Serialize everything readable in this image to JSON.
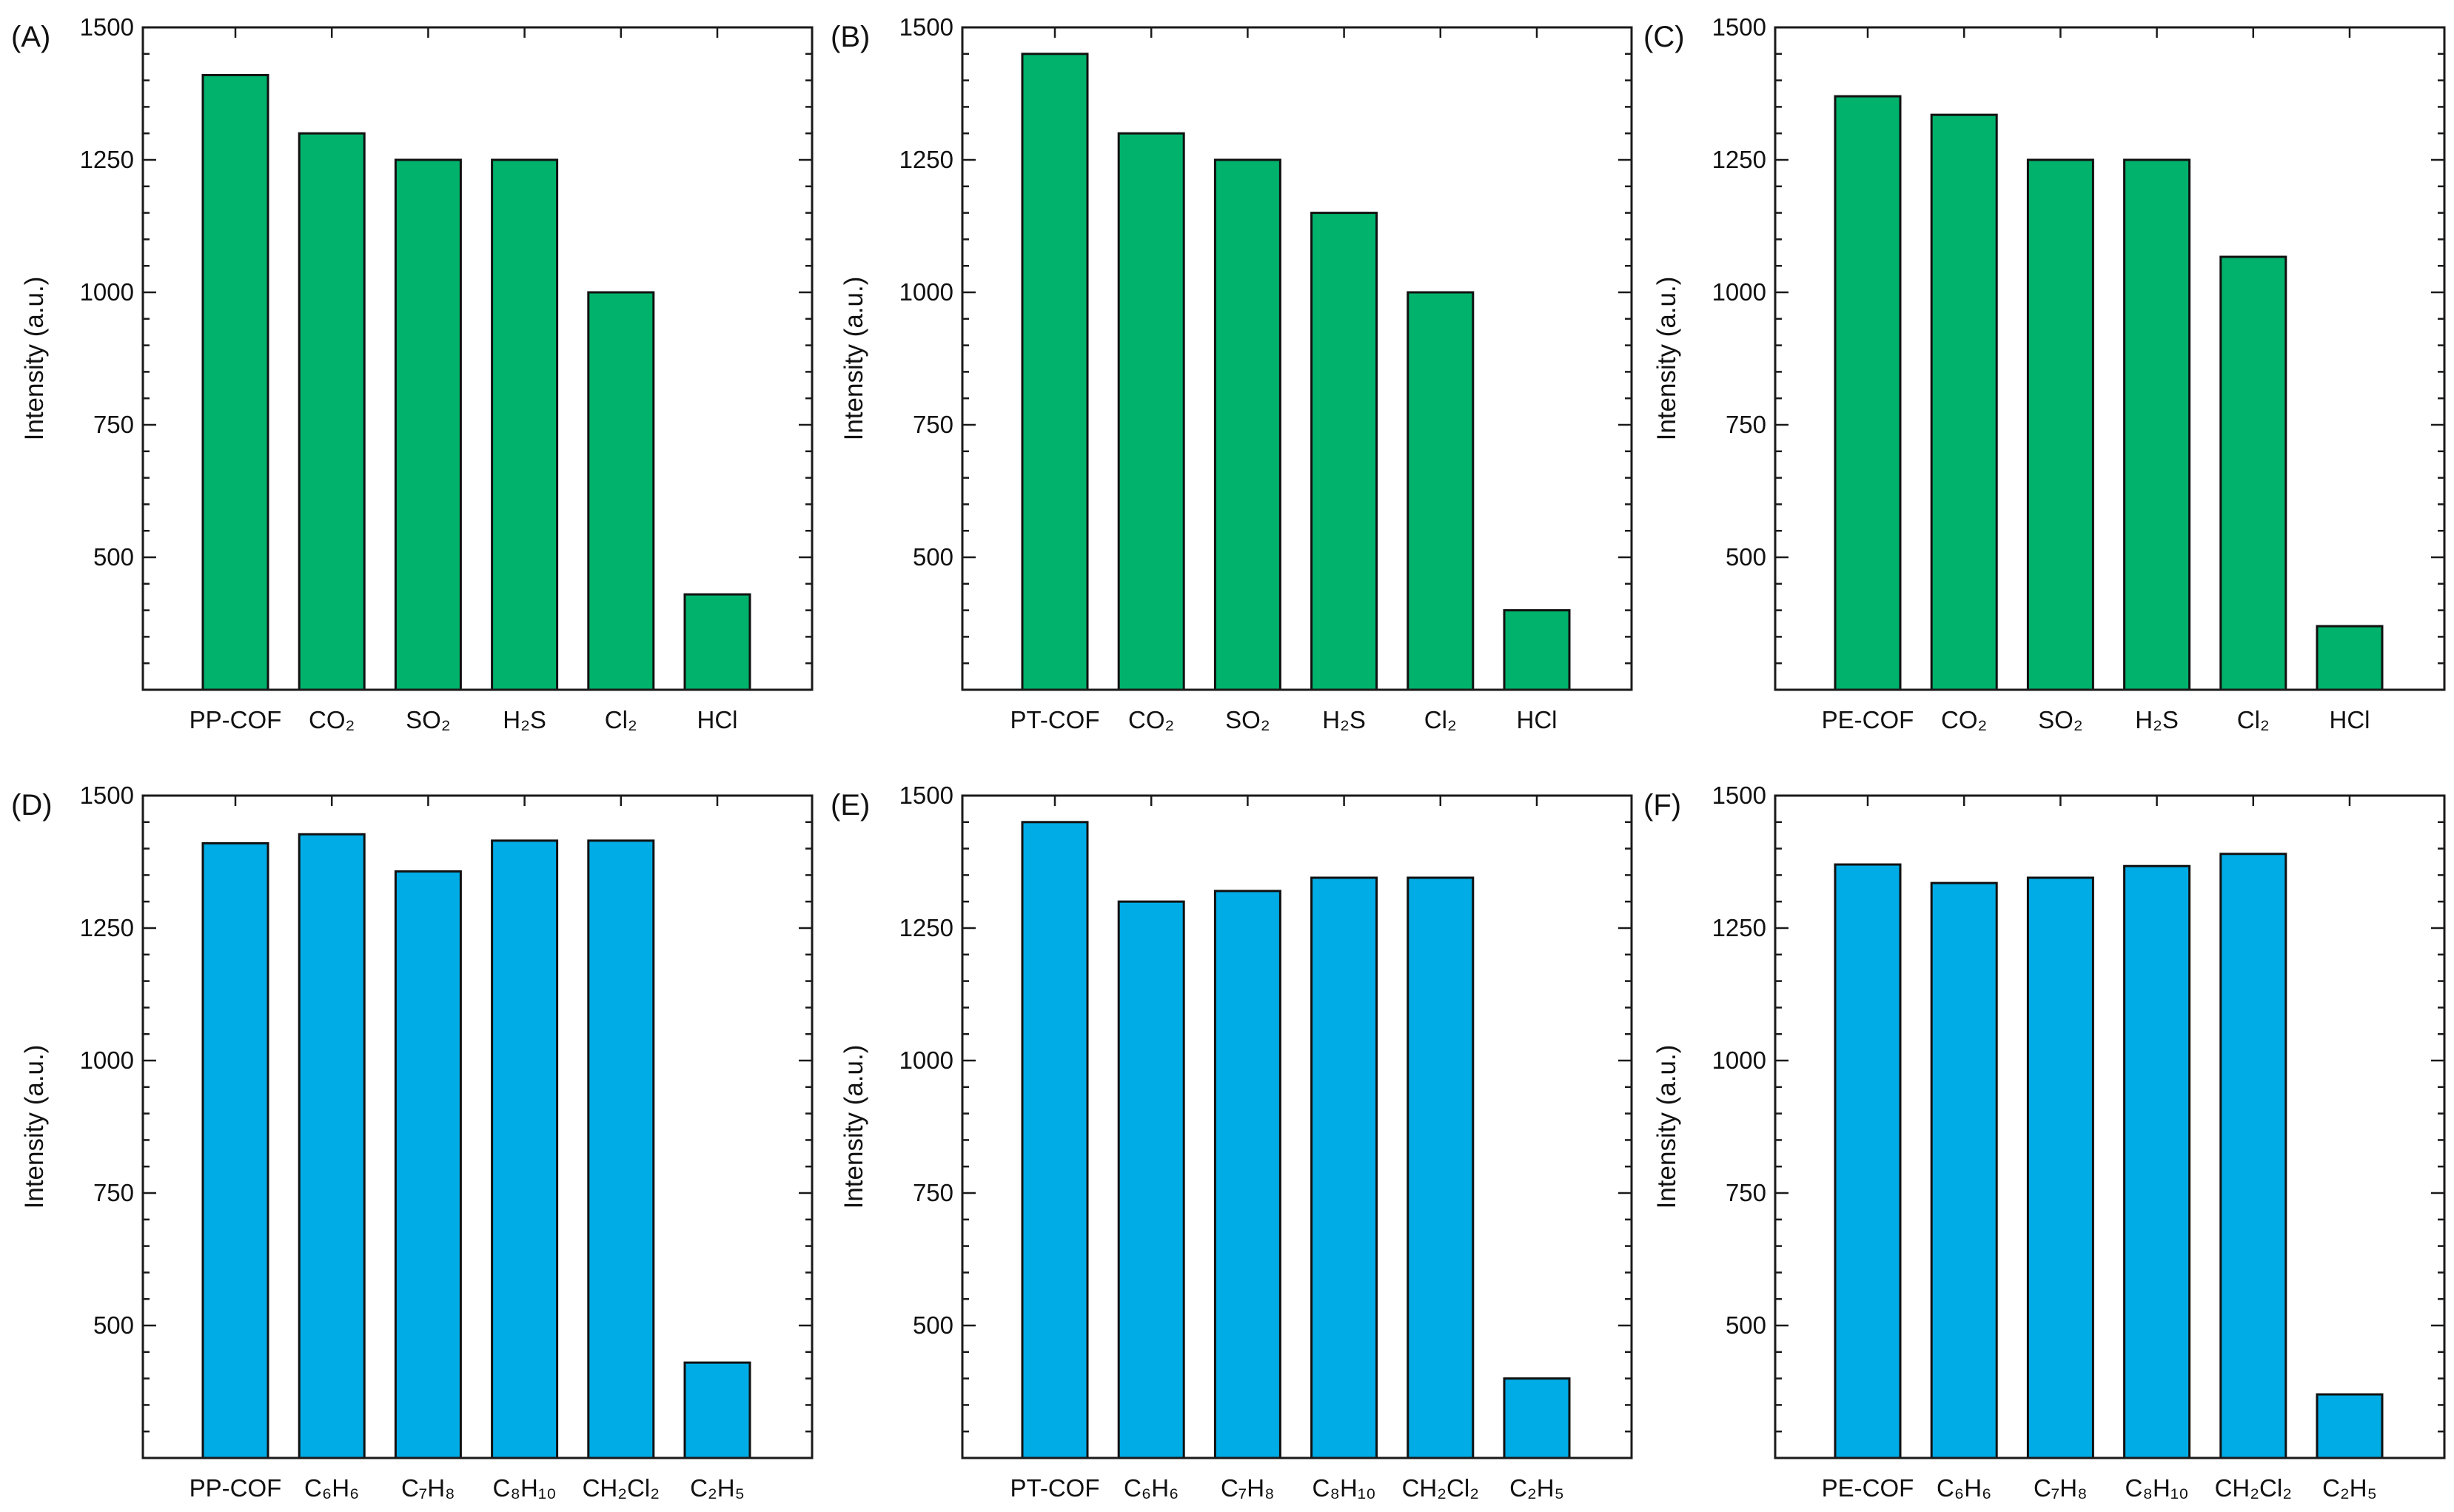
{
  "figure": {
    "colors": {
      "green": "#00b26b",
      "blue": "#00ace6"
    }
  },
  "chart_data": [
    {
      "id": "A",
      "type": "bar",
      "panel_label": "(A)",
      "ylabel": "Intensity (a.u.)",
      "ylim": [
        250,
        1500
      ],
      "yticks": [
        500,
        750,
        1000,
        1250,
        1500
      ],
      "categories": [
        "PP-COF",
        "CO₂",
        "SO₂",
        "H₂S",
        "Cl₂",
        "HCl"
      ],
      "values": [
        1410,
        1300,
        1250,
        1250,
        1000,
        430
      ],
      "color": "#00b26b"
    },
    {
      "id": "B",
      "type": "bar",
      "panel_label": "(B)",
      "ylabel": "Intensity (a.u.)",
      "ylim": [
        250,
        1500
      ],
      "yticks": [
        500,
        750,
        1000,
        1250,
        1500
      ],
      "categories": [
        "PT-COF",
        "CO₂",
        "SO₂",
        "H₂S",
        "Cl₂",
        "HCl"
      ],
      "values": [
        1450,
        1300,
        1250,
        1150,
        1000,
        400
      ],
      "color": "#00b26b"
    },
    {
      "id": "C",
      "type": "bar",
      "panel_label": "(C)",
      "ylabel": "Intensity (a.u.)",
      "ylim": [
        250,
        1500
      ],
      "yticks": [
        500,
        750,
        1000,
        1250,
        1500
      ],
      "categories": [
        "PE-COF",
        "CO₂",
        "SO₂",
        "H₂S",
        "Cl₂",
        "HCl"
      ],
      "values": [
        1370,
        1335,
        1250,
        1250,
        1067,
        370
      ],
      "color": "#00b26b"
    },
    {
      "id": "D",
      "type": "bar",
      "panel_label": "(D)",
      "ylabel": "Intensity (a.u.)",
      "ylim": [
        250,
        1500
      ],
      "yticks": [
        500,
        750,
        1000,
        1250,
        1500
      ],
      "categories": [
        "PP-COF",
        "C₆H₆",
        "C₇H₈",
        "C₈H₁₀",
        "CH₂Cl₂",
        "C₂H₅"
      ],
      "values": [
        1410,
        1427,
        1357,
        1415,
        1415,
        430
      ],
      "color": "#00ace6"
    },
    {
      "id": "E",
      "type": "bar",
      "panel_label": "(E)",
      "ylabel": "Intensity (a.u.)",
      "ylim": [
        250,
        1500
      ],
      "yticks": [
        500,
        750,
        1000,
        1250,
        1500
      ],
      "categories": [
        "PT-COF",
        "C₆H₆",
        "C₇H₈",
        "C₈H₁₀",
        "CH₂Cl₂",
        "C₂H₅"
      ],
      "values": [
        1450,
        1300,
        1320,
        1345,
        1345,
        400
      ],
      "color": "#00ace6"
    },
    {
      "id": "F",
      "type": "bar",
      "panel_label": "(F)",
      "ylabel": "Intensity (a.u.)",
      "ylim": [
        250,
        1500
      ],
      "yticks": [
        500,
        750,
        1000,
        1250,
        1500
      ],
      "categories": [
        "PE-COF",
        "C₆H₆",
        "C₇H₈",
        "C₈H₁₀",
        "CH₂Cl₂",
        "C₂H₅"
      ],
      "values": [
        1370,
        1335,
        1345,
        1367,
        1390,
        370
      ],
      "color": "#00ace6"
    }
  ]
}
